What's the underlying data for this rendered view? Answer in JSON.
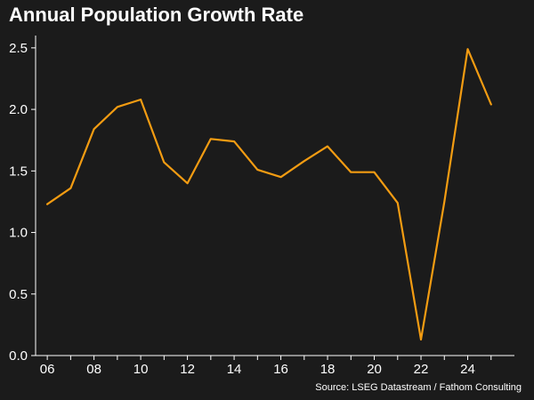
{
  "chart_data": {
    "type": "line",
    "title": "Annual Population Growth Rate",
    "subtitle": "",
    "xlabel": "",
    "ylabel": "",
    "x": [
      2006,
      2007,
      2008,
      2009,
      2010,
      2011,
      2012,
      2013,
      2014,
      2015,
      2016,
      2017,
      2018,
      2019,
      2020,
      2021,
      2022,
      2023,
      2024,
      2025
    ],
    "x_tick_values": [
      2006,
      2008,
      2010,
      2012,
      2014,
      2016,
      2018,
      2020,
      2022,
      2024
    ],
    "x_tick_labels": [
      "06",
      "08",
      "10",
      "12",
      "14",
      "16",
      "18",
      "20",
      "22",
      "24"
    ],
    "y_ticks": [
      "0.0",
      "0.5",
      "1.0",
      "1.5",
      "2.0",
      "2.5"
    ],
    "ylim": [
      0,
      2.6
    ],
    "grid": false,
    "legend": "none",
    "series": [
      {
        "values": [
          1.23,
          1.36,
          1.84,
          2.02,
          2.08,
          1.57,
          1.4,
          1.76,
          1.74,
          1.51,
          1.45,
          1.58,
          1.7,
          1.49,
          1.49,
          1.24,
          0.13,
          1.25,
          2.49,
          2.04
        ],
        "color": "#f39c12"
      }
    ],
    "source": "Source: LSEG Datastream / Fathom Consulting",
    "colors": {
      "background": "#1b1b1b",
      "axis": "#ffffff",
      "text": "#ffffff"
    }
  }
}
